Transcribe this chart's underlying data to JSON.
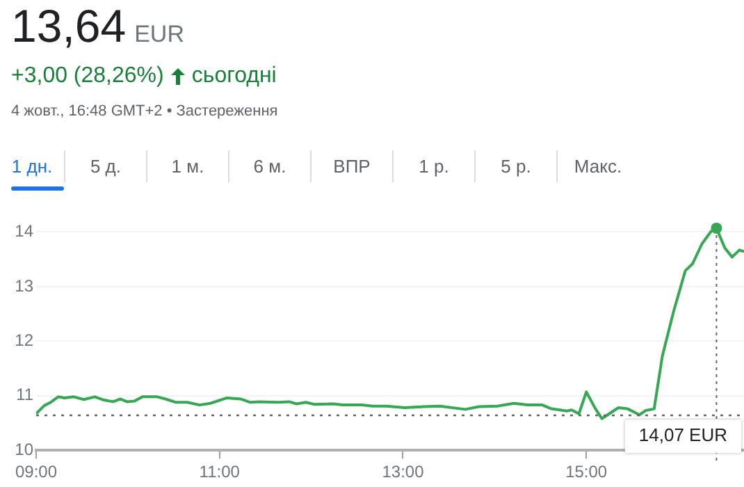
{
  "chart_data": {
    "type": "line",
    "title": "13,64",
    "subtitle": "4 жовт., 16:48 GMT+2 • Застереження",
    "annotations": [
      "EUR",
      "+3,00 (28,26%)",
      "сьогодні",
      "1 дн.",
      "5 д.",
      "1 м.",
      "6 м.",
      "ВПР",
      "1 р.",
      "5 р.",
      "Макс.",
      {
        "text": "14,07 EUR",
        "x": 16.42,
        "y": 14.07
      }
    ],
    "series": [
      {
        "color": "#34a853",
        "x": [
          9.0,
          9.09,
          9.16,
          9.24,
          9.31,
          9.41,
          9.52,
          9.64,
          9.74,
          9.84,
          9.92,
          9.99,
          10.07,
          10.16,
          10.32,
          10.41,
          10.52,
          10.65,
          10.78,
          10.9,
          11.08,
          11.23,
          11.33,
          11.43,
          11.64,
          11.76,
          11.84,
          11.94,
          12.04,
          12.24,
          12.34,
          12.55,
          12.67,
          12.82,
          13.02,
          13.23,
          13.4,
          13.68,
          13.83,
          14.03,
          14.21,
          14.36,
          14.52,
          14.62,
          14.79,
          14.84,
          14.92,
          15.0,
          15.1,
          15.17,
          15.35,
          15.45,
          15.58,
          15.65,
          15.74,
          15.83,
          15.95,
          16.08,
          16.16,
          16.26,
          16.36,
          16.42,
          16.51,
          16.59,
          16.67,
          16.72
        ],
        "values": [
          10.67,
          10.82,
          10.88,
          10.98,
          10.96,
          10.98,
          10.93,
          10.98,
          10.92,
          10.89,
          10.94,
          10.89,
          10.9,
          10.98,
          10.98,
          10.94,
          10.88,
          10.88,
          10.83,
          10.86,
          10.96,
          10.94,
          10.88,
          10.89,
          10.88,
          10.89,
          10.85,
          10.88,
          10.84,
          10.85,
          10.83,
          10.83,
          10.81,
          10.81,
          10.78,
          10.8,
          10.81,
          10.75,
          10.8,
          10.81,
          10.86,
          10.83,
          10.83,
          10.76,
          10.72,
          10.74,
          10.67,
          11.07,
          10.76,
          10.58,
          10.78,
          10.76,
          10.65,
          10.73,
          10.76,
          11.73,
          12.53,
          13.29,
          13.42,
          13.78,
          14.01,
          14.07,
          13.71,
          13.54,
          13.67,
          13.64
        ]
      }
    ],
    "xlim": [
      9,
      16.72
    ],
    "xticks": [
      {
        "value": 9,
        "label": "09:00"
      },
      {
        "value": 11,
        "label": "11:00"
      },
      {
        "value": 13,
        "label": "13:00"
      },
      {
        "value": 15,
        "label": "15:00"
      }
    ],
    "ylim": [
      10,
      14.07
    ],
    "yticks": [
      10,
      11,
      12,
      13,
      14
    ],
    "grid": "y",
    "legend": false,
    "ref_lines": [
      {
        "axis": "y",
        "value": 10.64,
        "line_style": "dotted",
        "color": "#5f6368"
      }
    ]
  }
}
